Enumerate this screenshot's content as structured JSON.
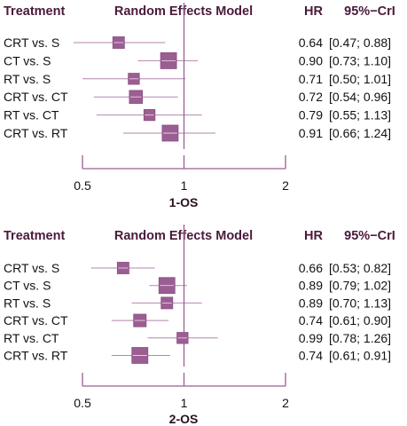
{
  "chart_data": [
    {
      "type": "forest",
      "header": {
        "treatment": "Treatment",
        "model": "Random Effects Model",
        "hr": "HR",
        "ci": "95%−CrI"
      },
      "caption": "1-OS",
      "scale": "log",
      "xlim": [
        0.5,
        2
      ],
      "ticks": [
        0.5,
        1,
        2
      ],
      "tick_labels": [
        "0.5",
        "1",
        "2"
      ],
      "reference_line": 1,
      "color": "#9b5e92",
      "rows": [
        {
          "label": "CRT vs. S",
          "hr": 0.64,
          "lo": 0.47,
          "hi": 0.88,
          "weight": 0.55,
          "hr_text": "0.64",
          "ci_text": "[0.47; 0.88]"
        },
        {
          "label": "CT vs. S",
          "hr": 0.9,
          "lo": 0.73,
          "hi": 1.1,
          "weight": 1.0,
          "hr_text": "0.90",
          "ci_text": "[0.73; 1.10]"
        },
        {
          "label": "RT vs. S",
          "hr": 0.71,
          "lo": 0.5,
          "hi": 1.01,
          "weight": 0.5,
          "hr_text": "0.71",
          "ci_text": "[0.50; 1.01]"
        },
        {
          "label": "CRT vs. CT",
          "hr": 0.72,
          "lo": 0.54,
          "hi": 0.96,
          "weight": 0.7,
          "hr_text": "0.72",
          "ci_text": "[0.54; 0.96]"
        },
        {
          "label": "RT vs. CT",
          "hr": 0.79,
          "lo": 0.55,
          "hi": 1.13,
          "weight": 0.5,
          "hr_text": "0.79",
          "ci_text": "[0.55; 1.13]"
        },
        {
          "label": "CRT vs. RT",
          "hr": 0.91,
          "lo": 0.66,
          "hi": 1.24,
          "weight": 1.0,
          "hr_text": "0.91",
          "ci_text": "[0.66; 1.24]"
        }
      ]
    },
    {
      "type": "forest",
      "header": {
        "treatment": "Treatment",
        "model": "Random Effects Model",
        "hr": "HR",
        "ci": "95%−CrI"
      },
      "caption": "2-OS",
      "scale": "log",
      "xlim": [
        0.5,
        2
      ],
      "ticks": [
        0.5,
        1,
        2
      ],
      "tick_labels": [
        "0.5",
        "1",
        "2"
      ],
      "reference_line": 1,
      "color": "#9b5e92",
      "rows": [
        {
          "label": "CRT vs. S",
          "hr": 0.66,
          "lo": 0.53,
          "hi": 0.82,
          "weight": 0.55,
          "hr_text": "0.66",
          "ci_text": "[0.53; 0.82]"
        },
        {
          "label": "CT vs. S",
          "hr": 0.89,
          "lo": 0.79,
          "hi": 1.02,
          "weight": 1.0,
          "hr_text": "0.89",
          "ci_text": "[0.79; 1.02]"
        },
        {
          "label": "RT vs. S",
          "hr": 0.89,
          "lo": 0.7,
          "hi": 1.13,
          "weight": 0.55,
          "hr_text": "0.89",
          "ci_text": "[0.70; 1.13]"
        },
        {
          "label": "CRT vs. CT",
          "hr": 0.74,
          "lo": 0.61,
          "hi": 0.9,
          "weight": 0.65,
          "hr_text": "0.74",
          "ci_text": "[0.61; 0.90]"
        },
        {
          "label": "RT vs. CT",
          "hr": 0.99,
          "lo": 0.78,
          "hi": 1.26,
          "weight": 0.5,
          "hr_text": "0.99",
          "ci_text": "[0.78; 1.26]"
        },
        {
          "label": "CRT vs. RT",
          "hr": 0.74,
          "lo": 0.61,
          "hi": 0.91,
          "weight": 1.0,
          "hr_text": "0.74",
          "ci_text": "[0.61; 0.91]"
        }
      ]
    }
  ]
}
